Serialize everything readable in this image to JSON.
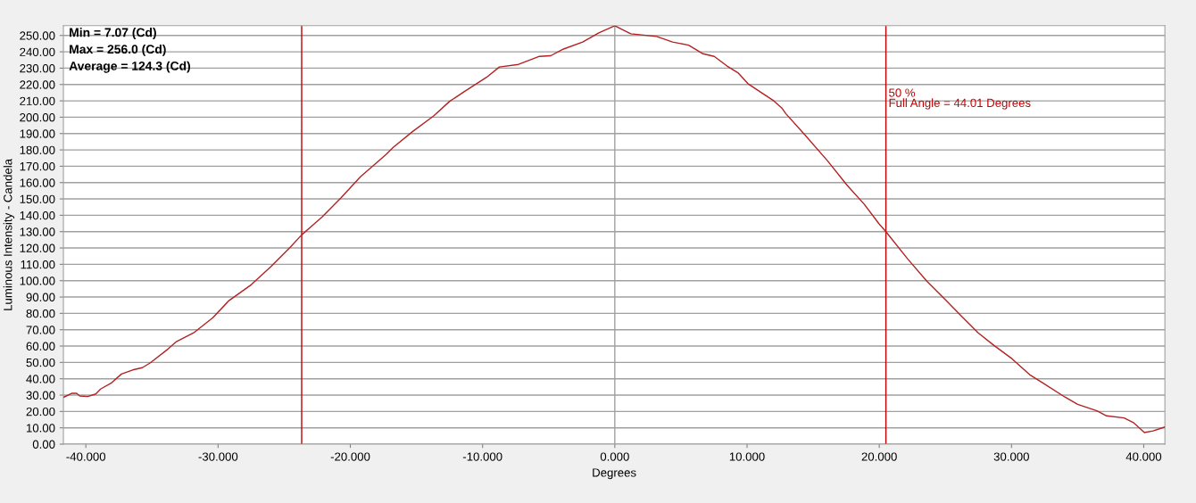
{
  "chart_data": {
    "type": "line",
    "xlabel": "Degrees",
    "ylabel": "Luminous Intensity - Candela",
    "xlim": [
      -41.7,
      41.6
    ],
    "ylim": [
      0,
      256
    ],
    "xticks": [
      {
        "value": -40,
        "label": "-40.000"
      },
      {
        "value": -30,
        "label": "-30.000"
      },
      {
        "value": -20,
        "label": "-20.000"
      },
      {
        "value": -10,
        "label": "-10.000"
      },
      {
        "value": 0,
        "label": "0.000"
      },
      {
        "value": 10,
        "label": "10.000"
      },
      {
        "value": 20,
        "label": "20.000"
      },
      {
        "value": 30,
        "label": "30.000"
      },
      {
        "value": 40,
        "label": "40.000"
      }
    ],
    "yticks": [
      {
        "value": 0,
        "label": "0.00"
      },
      {
        "value": 10,
        "label": "10.00"
      },
      {
        "value": 20,
        "label": "20.00"
      },
      {
        "value": 30,
        "label": "30.00"
      },
      {
        "value": 40,
        "label": "40.00"
      },
      {
        "value": 50,
        "label": "50.00"
      },
      {
        "value": 60,
        "label": "60.00"
      },
      {
        "value": 70,
        "label": "70.00"
      },
      {
        "value": 80,
        "label": "80.00"
      },
      {
        "value": 90,
        "label": "90.00"
      },
      {
        "value": 100,
        "label": "100.00"
      },
      {
        "value": 110,
        "label": "110.00"
      },
      {
        "value": 120,
        "label": "120.00"
      },
      {
        "value": 130,
        "label": "130.00"
      },
      {
        "value": 140,
        "label": "140.00"
      },
      {
        "value": 150,
        "label": "150.00"
      },
      {
        "value": 160,
        "label": "160.00"
      },
      {
        "value": 170,
        "label": "170.00"
      },
      {
        "value": 180,
        "label": "180.00"
      },
      {
        "value": 190,
        "label": "190.00"
      },
      {
        "value": 200,
        "label": "200.00"
      },
      {
        "value": 210,
        "label": "210.00"
      },
      {
        "value": 220,
        "label": "220.00"
      },
      {
        "value": 230,
        "label": "230.00"
      },
      {
        "value": 240,
        "label": "240.00"
      },
      {
        "value": 250,
        "label": "250.00"
      }
    ],
    "grid": "y",
    "legend": false,
    "marker": "none",
    "line_style": "solid",
    "annotations": [
      "Min = 7.07 (Cd)",
      "Max = 256.0 (Cd)",
      "Average = 124.3 (Cd)",
      "50 %\nFull Angle = 44.01 Degrees"
    ],
    "ref_lines": [
      {
        "axis": "x",
        "value": 0,
        "label": null,
        "color": "#a0a0a0"
      },
      {
        "axis": "x",
        "value": -23.68,
        "label": null,
        "color": "#c00000"
      },
      {
        "axis": "x",
        "value": 20.5,
        "label": null,
        "color": "#c00000"
      }
    ],
    "series": [
      {
        "color": "#b22222",
        "x": [
          -41.65,
          -41.07,
          -40.7,
          -40.46,
          -39.86,
          -39.25,
          -38.89,
          -38.04,
          -37.31,
          -36.46,
          -35.73,
          -35.12,
          -33.79,
          -33.19,
          -31.85,
          -30.4,
          -29.18,
          -27.48,
          -26.03,
          -24.58,
          -23.68,
          -22.15,
          -20.7,
          -19.24,
          -17.3,
          -16.74,
          -15.28,
          -13.7,
          -12.49,
          -11.4,
          -9.7,
          -8.73,
          -7.28,
          -5.7,
          -4.85,
          -3.88,
          -2.43,
          -1.21,
          0.0,
          0.73,
          1.21,
          3.16,
          4.37,
          5.58,
          6.67,
          7.52,
          8.49,
          9.34,
          10.07,
          11.16,
          12.01,
          12.62,
          12.93,
          14.39,
          16.09,
          17.54,
          18.87,
          19.97,
          20.5,
          22.15,
          23.61,
          25.06,
          26.15,
          27.48,
          28.7,
          30.03,
          31.37,
          32.34,
          34.04,
          35.0,
          36.46,
          37.19,
          38.52,
          39.25,
          40.05,
          40.71,
          41.56
        ],
        "values": [
          28.8,
          31.1,
          31.1,
          29.5,
          29.1,
          30.7,
          33.7,
          37.6,
          42.9,
          45.4,
          46.8,
          49.8,
          58.2,
          62.5,
          68.1,
          77.3,
          87.8,
          97.6,
          108.4,
          120.2,
          128.0,
          138.9,
          150.7,
          163.5,
          177.2,
          181.7,
          191.3,
          200.8,
          209.7,
          215.6,
          224.4,
          230.7,
          232.3,
          237.2,
          237.6,
          241.7,
          246.0,
          251.6,
          256.0,
          252.9,
          251.0,
          249.4,
          246.0,
          244.1,
          238.8,
          237.2,
          231.3,
          227.0,
          220.5,
          214.6,
          210.1,
          205.7,
          202.2,
          189.0,
          173.3,
          158.6,
          146.7,
          134.9,
          130.0,
          113.3,
          99.6,
          87.8,
          78.9,
          68.1,
          60.2,
          52.3,
          42.5,
          37.6,
          28.8,
          24.4,
          20.4,
          17.3,
          16.0,
          13.0,
          7.1,
          8.1,
          10.4
        ]
      }
    ]
  }
}
